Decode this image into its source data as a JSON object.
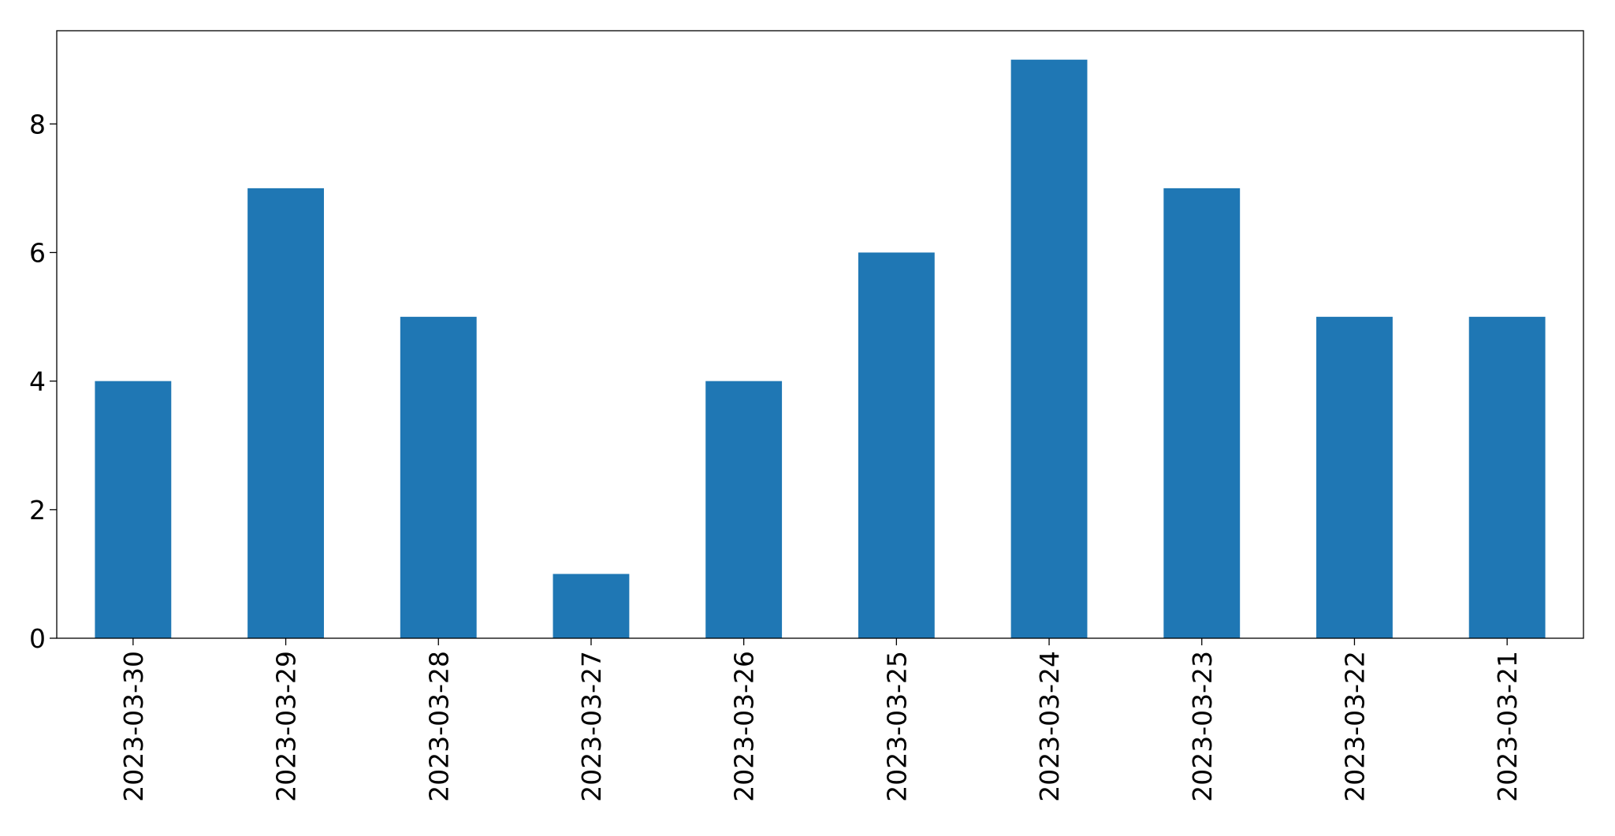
{
  "chart_data": {
    "type": "bar",
    "categories": [
      "2023-03-30",
      "2023-03-29",
      "2023-03-28",
      "2023-03-27",
      "2023-03-26",
      "2023-03-25",
      "2023-03-24",
      "2023-03-23",
      "2023-03-22",
      "2023-03-21"
    ],
    "values": [
      4,
      7,
      5,
      1,
      4,
      6,
      9,
      7,
      5,
      5
    ],
    "color": "#1f77b4",
    "ylim": [
      0,
      9.45
    ],
    "yticks": [
      0,
      2,
      4,
      6,
      8
    ],
    "grid": false
  }
}
